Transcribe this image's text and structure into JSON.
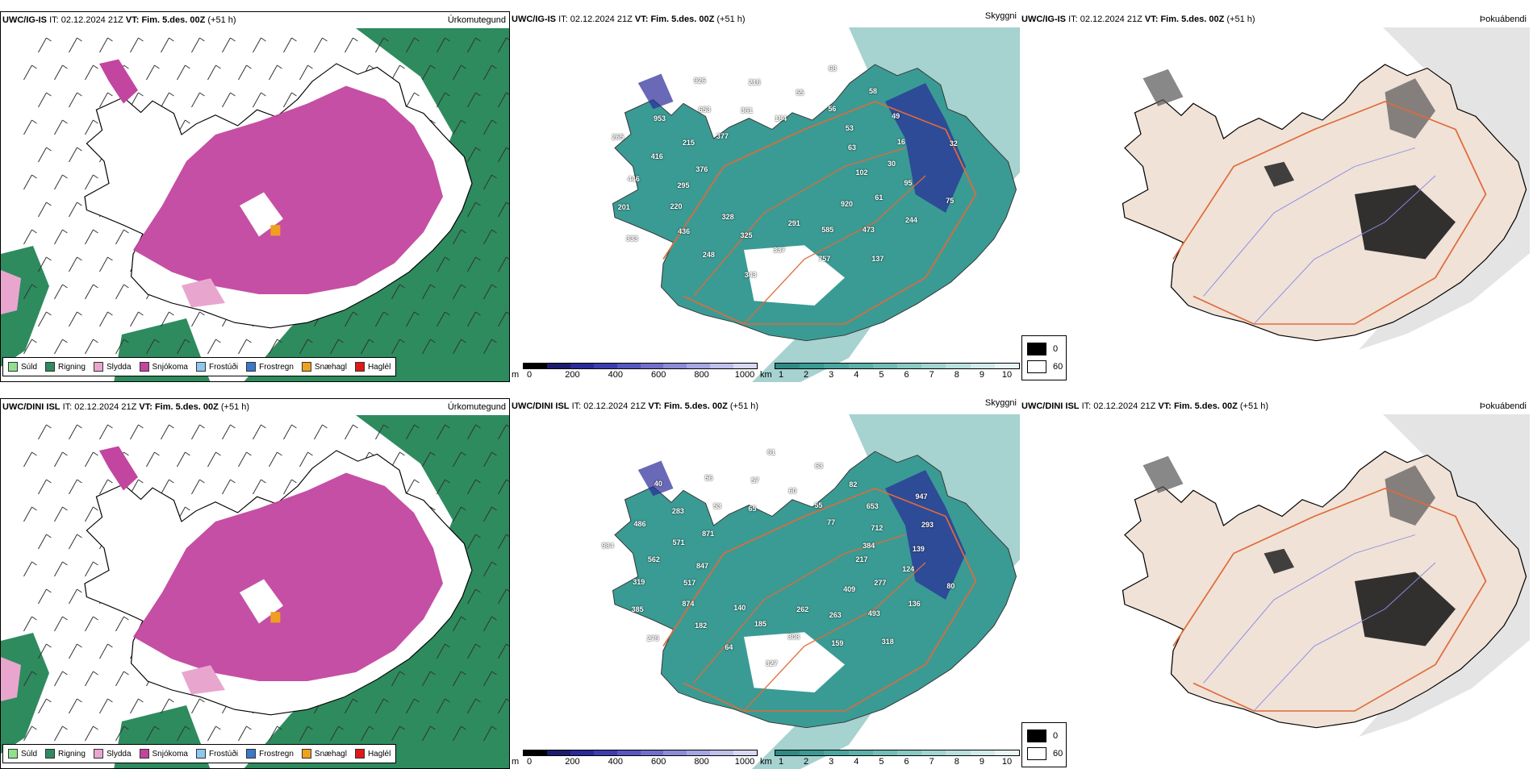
{
  "colors": {
    "green": "#2e8b5e",
    "magenta": "#c2469f",
    "pink": "#e8a6cf",
    "orange": "#f0a020",
    "teal": "#3a9b94",
    "fog_land": "#f0e2d6",
    "roads": "#e06a3a"
  },
  "rows": [
    {
      "model": "UWC/IG-IS",
      "it_label": "IT:",
      "it_value": "02.12.2024 21Z",
      "vt_label": "VT:",
      "vt_value": "Fim. 5.des. 00Z",
      "lead": "(+51 h)",
      "panel_titles": [
        "Úrkomutegund",
        "Skyggni",
        "Þokuábendi"
      ],
      "visibility_labels": [
        "102",
        "95",
        "75",
        "61",
        "244",
        "920",
        "473",
        "137",
        "585",
        "757",
        "291",
        "337",
        "343",
        "325",
        "248",
        "328",
        "436",
        "333",
        "220",
        "201",
        "295",
        "446",
        "376",
        "416",
        "265",
        "215",
        "953",
        "377",
        "653",
        "926",
        "361",
        "216",
        "184",
        "55",
        "68",
        "56",
        "58",
        "53",
        "49",
        "63",
        "16",
        "32",
        "30"
      ]
    },
    {
      "model": "UWC/DINI ISL",
      "it_label": "IT:",
      "it_value": "02.12.2024 21Z",
      "vt_label": "VT:",
      "vt_value": "Fim. 5.des. 00Z",
      "lead": "(+51 h)",
      "panel_titles": [
        "Úrkomutegund",
        "Skyggni",
        "Þokuábendi"
      ],
      "visibility_labels": [
        "217",
        "124",
        "80",
        "277",
        "136",
        "409",
        "493",
        "318",
        "263",
        "159",
        "262",
        "308",
        "327",
        "185",
        "64",
        "140",
        "182",
        "279",
        "874",
        "385",
        "517",
        "319",
        "847",
        "562",
        "984",
        "571",
        "486",
        "871",
        "283",
        "40",
        "53",
        "56",
        "65",
        "57",
        "61",
        "60",
        "63",
        "55",
        "82",
        "77",
        "653",
        "947",
        "712",
        "293",
        "384",
        "139"
      ]
    }
  ],
  "precip_legend": [
    {
      "label": "Súld",
      "color": "#8fe08f"
    },
    {
      "label": "Rigning",
      "color": "#2e8b5e"
    },
    {
      "label": "Slydda",
      "color": "#e8a6cf"
    },
    {
      "label": "Snjókoma",
      "color": "#c2469f"
    },
    {
      "label": "Frostúði",
      "color": "#8fc8ee"
    },
    {
      "label": "Frostregn",
      "color": "#3a78c8"
    },
    {
      "label": "Snæhagl",
      "color": "#f0a020"
    },
    {
      "label": "Haglél",
      "color": "#e01818"
    }
  ],
  "height_bar": {
    "unit": "m",
    "ticks": [
      "0",
      "200",
      "400",
      "600",
      "800",
      "1000"
    ],
    "colors": [
      "#000000",
      "#1c1c6e",
      "#2a2a9a",
      "#3d3db0",
      "#5757c0",
      "#7070cc",
      "#8c8cd8",
      "#a6a6e2",
      "#c0c0ec",
      "#d8d8f4"
    ]
  },
  "visibility_bar": {
    "unit": "km",
    "ticks": [
      "1",
      "2",
      "3",
      "4",
      "5",
      "6",
      "7",
      "8",
      "9",
      "10"
    ],
    "colors": [
      "#2f8a84",
      "#3a9b94",
      "#4ba6a0",
      "#5db1ab",
      "#72bdb8",
      "#88c9c4",
      "#a0d5d1",
      "#b8e0dd",
      "#d0ebe9",
      "#e8f5f4"
    ]
  },
  "fog_legend": [
    {
      "label": "0",
      "color": "#000000"
    },
    {
      "label": "60",
      "color": "#ffffff"
    }
  ]
}
